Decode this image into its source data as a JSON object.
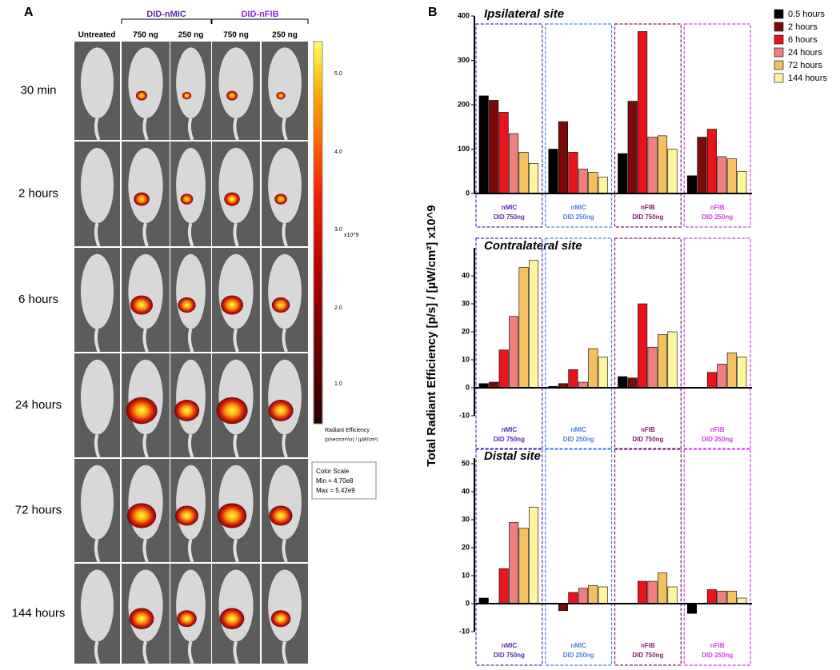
{
  "panel_a": {
    "label": "A",
    "untreated": "Untreated",
    "groups": [
      "DID-nMIC",
      "DID-nFIB"
    ],
    "doses": [
      "750 ng",
      "250 ng",
      "750 ng",
      "250 ng"
    ],
    "rows": [
      "30 min",
      "2 hours",
      "6 hours",
      "24 hours",
      "72 hours",
      "144 hours"
    ],
    "scale_ticks": [
      "5.0",
      "4.0",
      "3.0",
      "2.0",
      "1.0"
    ],
    "scale_unit": "x10^9",
    "scale_title": "Radiant Efficiency",
    "scale_units_text": "(p/sec/cm²/sr) / (µW/cm²)",
    "color_scale": [
      "Color Scale",
      "Min = 4.70e8",
      "Max = 5.42e9"
    ]
  },
  "panel_b": {
    "label": "B",
    "ylabel": "Total Radiant Efficiency [p/s] / [µW/cm²] x10^9"
  },
  "chart_data": [
    {
      "type": "bar",
      "title": "Ipsilateral site",
      "legend": "right",
      "categories": [
        [
          "nMIC",
          "DID 750ng"
        ],
        [
          "nMIC",
          "DID 250ng"
        ],
        [
          "nFIB",
          "DID 750ng"
        ],
        [
          "nFIB",
          "DID 250ng"
        ]
      ],
      "group_colors": [
        "#5a2db0",
        "#4f7fe0",
        "#7a1f6a",
        "#cc44dd"
      ],
      "ylim": [
        0,
        400
      ],
      "yticks": [
        0,
        100,
        200,
        300,
        400
      ],
      "series": [
        {
          "name": "0.5 hours",
          "color": "#000000",
          "values": [
            220,
            100,
            90,
            40
          ]
        },
        {
          "name": "2 hours",
          "color": "#7b0a0a",
          "values": [
            210,
            162,
            208,
            127
          ]
        },
        {
          "name": "6 hours",
          "color": "#e8141b",
          "values": [
            183,
            93,
            365,
            145
          ]
        },
        {
          "name": "24 hours",
          "color": "#f08080",
          "values": [
            135,
            55,
            127,
            83
          ]
        },
        {
          "name": "72 hours",
          "color": "#f5c060",
          "values": [
            93,
            48,
            130,
            78
          ]
        },
        {
          "name": "144 hours",
          "color": "#fff5a0",
          "values": [
            68,
            37,
            100,
            50
          ]
        }
      ]
    },
    {
      "type": "bar",
      "title": "Contralateral site",
      "categories": [
        [
          "nMIC",
          "DID 750ng"
        ],
        [
          "nMIC",
          "DID 250ng"
        ],
        [
          "nFIB",
          "DID 750ng"
        ],
        [
          "nFIB",
          "DID 250ng"
        ]
      ],
      "group_colors": [
        "#5a2db0",
        "#4f7fe0",
        "#7a1f6a",
        "#cc44dd"
      ],
      "ylim": [
        -10,
        50
      ],
      "yticks": [
        -10,
        0,
        10,
        20,
        30,
        40
      ],
      "series": [
        {
          "color": "#000000",
          "values": [
            1.5,
            0.5,
            4,
            0
          ]
        },
        {
          "color": "#7b0a0a",
          "values": [
            2,
            1.5,
            3.5,
            0
          ]
        },
        {
          "color": "#e8141b",
          "values": [
            13.5,
            6.5,
            30,
            5.5
          ]
        },
        {
          "color": "#f08080",
          "values": [
            25.5,
            2,
            14.5,
            8.5
          ]
        },
        {
          "color": "#f5c060",
          "values": [
            43,
            14,
            19,
            12.5
          ]
        },
        {
          "color": "#fff5a0",
          "values": [
            45.5,
            11,
            20,
            11
          ]
        }
      ]
    },
    {
      "type": "bar",
      "title": "Distal site",
      "categories": [
        [
          "nMIC",
          "DID 750ng"
        ],
        [
          "nMIC",
          "DID 250ng"
        ],
        [
          "nFIB",
          "DID 750ng"
        ],
        [
          "nFIB",
          "DID 250ng"
        ]
      ],
      "group_colors": [
        "#5a2db0",
        "#4f7fe0",
        "#7a1f6a",
        "#cc44dd"
      ],
      "ylim": [
        -10,
        52
      ],
      "yticks": [
        -10,
        0,
        10,
        20,
        30,
        40,
        50
      ],
      "series": [
        {
          "color": "#000000",
          "values": [
            2,
            0,
            0,
            -3.5
          ]
        },
        {
          "color": "#7b0a0a",
          "values": [
            0,
            -2.5,
            0,
            0
          ]
        },
        {
          "color": "#e8141b",
          "values": [
            12.5,
            4,
            8,
            5
          ]
        },
        {
          "color": "#f08080",
          "values": [
            29,
            5.5,
            8,
            4.5
          ]
        },
        {
          "color": "#f5c060",
          "values": [
            27,
            6.5,
            11,
            4.5
          ]
        },
        {
          "color": "#fff5a0",
          "values": [
            34.5,
            6,
            6,
            2
          ]
        }
      ]
    }
  ]
}
